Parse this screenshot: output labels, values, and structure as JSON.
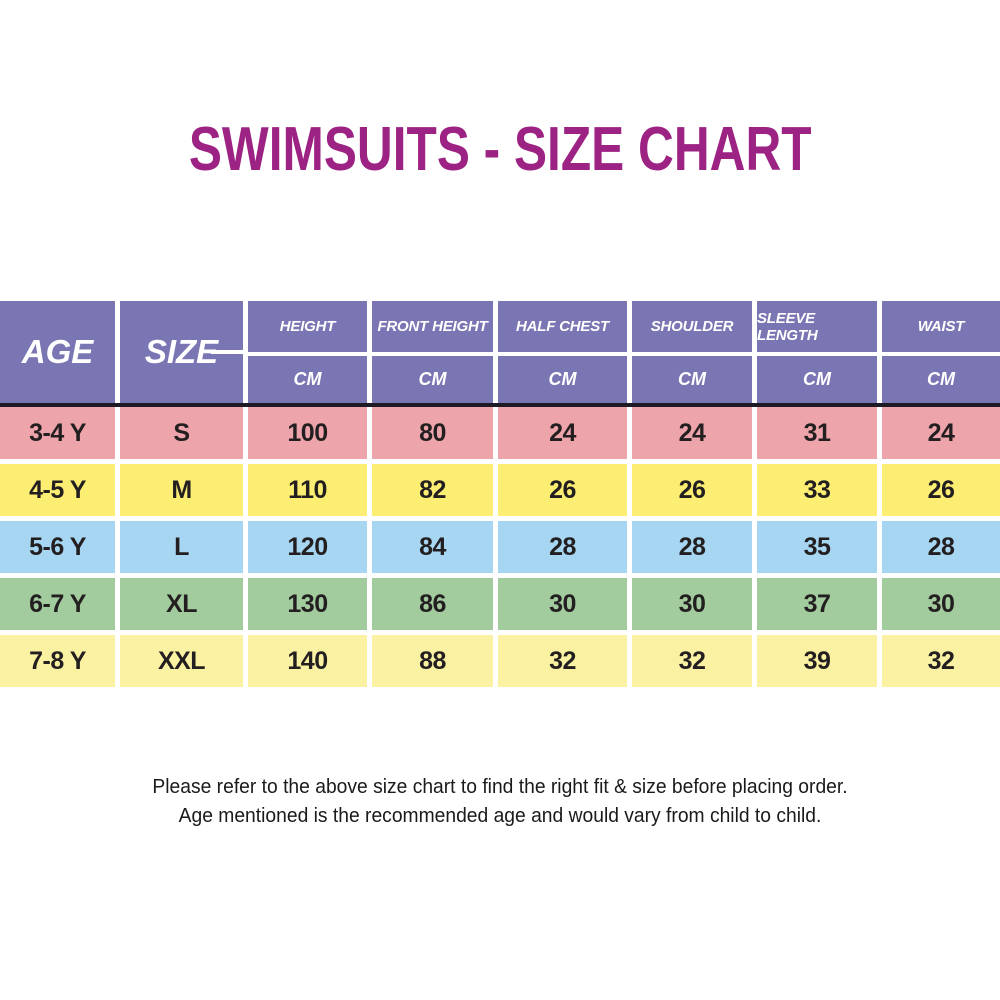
{
  "title": "SWIMSUITS - SIZE CHART",
  "chart_data": {
    "type": "table",
    "title": "SWIMSUITS - SIZE CHART",
    "columns": [
      {
        "label": "AGE",
        "unit": ""
      },
      {
        "label": "SIZE",
        "unit": ""
      },
      {
        "label": "HEIGHT",
        "unit": "CM"
      },
      {
        "label": "FRONT HEIGHT",
        "unit": "CM"
      },
      {
        "label": "HALF CHEST",
        "unit": "CM"
      },
      {
        "label": "SHOULDER",
        "unit": "CM"
      },
      {
        "label": "SLEEVE LENGTH",
        "unit": "CM"
      },
      {
        "label": "WAIST",
        "unit": "CM"
      }
    ],
    "rows": [
      {
        "cells": [
          "3-4 Y",
          "S",
          "100",
          "80",
          "24",
          "24",
          "31",
          "24"
        ],
        "row_color": "#eda4ab"
      },
      {
        "cells": [
          "4-5 Y",
          "M",
          "110",
          "82",
          "26",
          "26",
          "33",
          "26"
        ],
        "row_color": "#fcee72"
      },
      {
        "cells": [
          "5-6 Y",
          "L",
          "120",
          "84",
          "28",
          "28",
          "35",
          "28"
        ],
        "row_color": "#a6d6f2"
      },
      {
        "cells": [
          "6-7 Y",
          "XL",
          "130",
          "86",
          "30",
          "30",
          "37",
          "30"
        ],
        "row_color": "#a2cb9e"
      },
      {
        "cells": [
          "7-8 Y",
          "XXL",
          "140",
          "88",
          "32",
          "32",
          "39",
          "32"
        ],
        "row_color": "#faf2a2"
      }
    ]
  },
  "footer": {
    "line1": "Please refer to the above size chart to find the right fit & size before placing order.",
    "line2": "Age mentioned is the recommended age and would vary from child to child."
  },
  "colors": {
    "title": "#9c2283",
    "header_bg": "#7a75b3",
    "header_text": "#ffffff",
    "header_divider": "#ffffff",
    "dark_rule": "#1f1b26",
    "cell_text": "#231f20",
    "footer_text": "#1a1a1a",
    "page_bg": "#ffffff"
  }
}
